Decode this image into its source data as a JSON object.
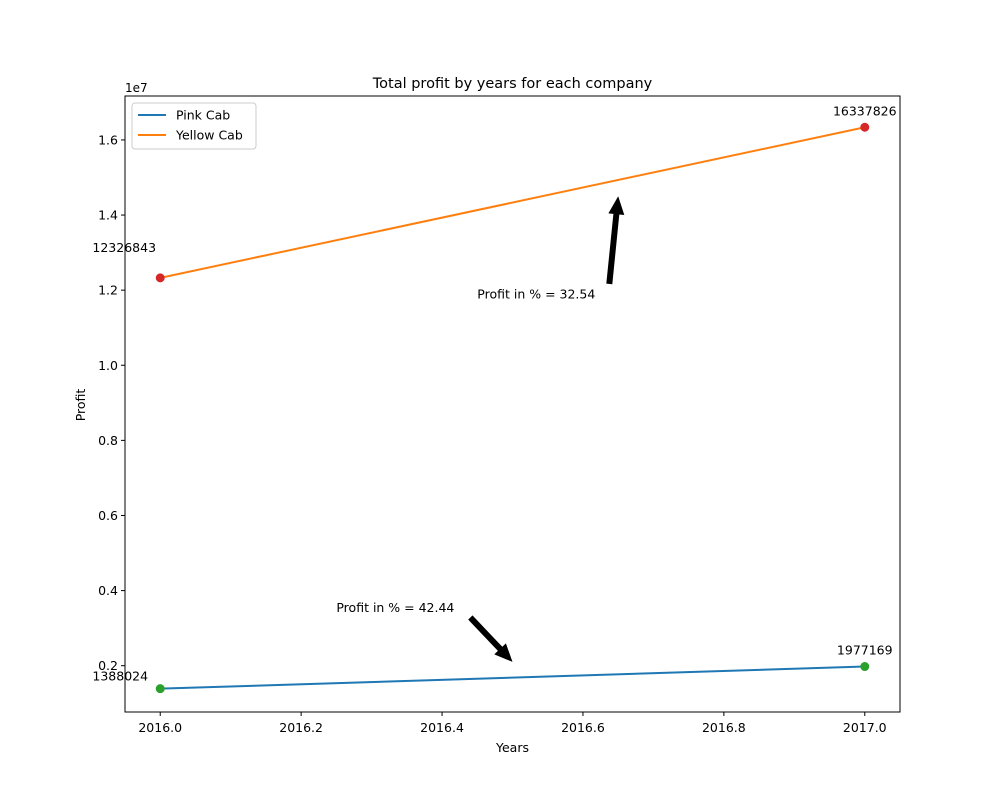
{
  "chart_data": {
    "type": "line",
    "title": "Total profit by years for each company",
    "xlabel": "Years",
    "ylabel": "Profit",
    "y_offset_label": "1e7",
    "xlim": [
      2015.95,
      2017.05
    ],
    "ylim": [
      767000,
      17170000
    ],
    "x_ticks": [
      2016.0,
      2016.2,
      2016.4,
      2016.6,
      2016.8,
      2017.0
    ],
    "x_tick_labels": [
      "2016.0",
      "2016.2",
      "2016.4",
      "2016.6",
      "2016.8",
      "2017.0"
    ],
    "y_ticks": [
      2000000,
      4000000,
      6000000,
      8000000,
      10000000,
      12000000,
      14000000,
      16000000
    ],
    "y_tick_labels": [
      "0.2",
      "0.4",
      "0.6",
      "0.8",
      "1.0",
      "1.2",
      "1.4",
      "1.6"
    ],
    "grid": false,
    "legend_position": "top-left",
    "x": [
      2016,
      2017
    ],
    "series": [
      {
        "name": "Pink Cab",
        "color": "#1f77b4",
        "marker_color": "#2ca02c",
        "values": [
          1388024,
          1977169
        ],
        "value_labels": [
          "1388024",
          "1977169"
        ]
      },
      {
        "name": "Yellow Cab",
        "color": "#ff7f0e",
        "marker_color": "#d62728",
        "values": [
          12326843,
          16337826
        ],
        "value_labels": [
          "12326843",
          "16337826"
        ]
      }
    ],
    "annotations": [
      {
        "text": "Profit in % = 32.54",
        "text_xy": [
          2016.45,
          11900000
        ],
        "arrow_to": [
          2016.65,
          14500000
        ]
      },
      {
        "text": "Profit in % = 42.44",
        "text_xy": [
          2016.25,
          3550000
        ],
        "arrow_to": [
          2016.5,
          2100000
        ]
      }
    ]
  }
}
